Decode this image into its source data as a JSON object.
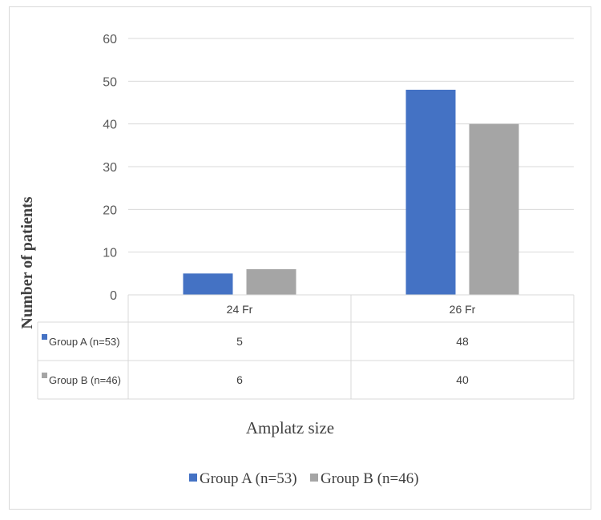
{
  "chart_data": {
    "type": "bar",
    "categories": [
      "24 Fr",
      "26 Fr"
    ],
    "series": [
      {
        "name": "Group A (n=53)",
        "values": [
          5,
          48
        ],
        "color": "#4472c4"
      },
      {
        "name": "Group B  (n=46)",
        "values": [
          6,
          40
        ],
        "color": "#a5a5a5"
      }
    ],
    "xlabel": "Amplatz size",
    "ylabel": "Number of patients",
    "ylim": [
      0,
      60
    ],
    "yticks": [
      0,
      10,
      20,
      30,
      40,
      50,
      60
    ],
    "grid": true,
    "legend": "bottom",
    "data_table": true
  }
}
